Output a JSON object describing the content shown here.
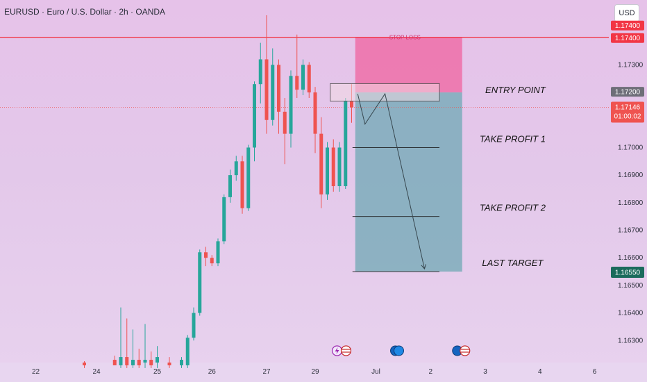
{
  "header": {
    "symbol_title": "EURUSD · Euro / U.S. Dollar · 2h · OANDA",
    "currency_button": "USD"
  },
  "colors": {
    "bull": "#26a69a",
    "bear": "#ef5350",
    "stop_zone": "#ef6fa8",
    "profit_zone": "#6fa8b4",
    "resistance_line": "#f23645",
    "current_price_line": "#ef5350",
    "last_target_tag": "#1b6b5c",
    "entry_tag": "#6e6e78"
  },
  "chart_data": {
    "type": "candlestick",
    "ylim": [
      1.1622,
      1.17495
    ],
    "y_ticks": [
      "1.17300",
      "1.17000",
      "1.16900",
      "1.16800",
      "1.16700",
      "1.16600",
      "1.16500",
      "1.16400",
      "1.16300"
    ],
    "x_ticks": [
      {
        "label": "22",
        "i": -26
      },
      {
        "label": "24",
        "i": -16
      },
      {
        "label": "25",
        "i": -6
      },
      {
        "label": "26",
        "i": 3
      },
      {
        "label": "27",
        "i": 12
      },
      {
        "label": "29",
        "i": 20
      },
      {
        "label": "Jul",
        "i": 30
      },
      {
        "label": "2",
        "i": 39
      },
      {
        "label": "3",
        "i": 48
      },
      {
        "label": "4",
        "i": 57
      },
      {
        "label": "6",
        "i": 66
      }
    ],
    "candles": [
      {
        "i": -18,
        "o": 1.1622,
        "h": 1.16225,
        "l": 1.162,
        "c": 1.1621
      },
      {
        "i": -13,
        "o": 1.1623,
        "h": 1.16245,
        "l": 1.1621,
        "c": 1.1621
      },
      {
        "i": -12,
        "o": 1.1621,
        "h": 1.1642,
        "l": 1.162,
        "c": 1.1624
      },
      {
        "i": -11,
        "o": 1.1624,
        "h": 1.1638,
        "l": 1.162,
        "c": 1.1621
      },
      {
        "i": -10,
        "o": 1.1621,
        "h": 1.1634,
        "l": 1.162,
        "c": 1.1623
      },
      {
        "i": -9,
        "o": 1.1623,
        "h": 1.1627,
        "l": 1.162,
        "c": 1.1621
      },
      {
        "i": -8,
        "o": 1.1622,
        "h": 1.1636,
        "l": 1.162,
        "c": 1.1623
      },
      {
        "i": -7,
        "o": 1.1623,
        "h": 1.1626,
        "l": 1.162,
        "c": 1.1621
      },
      {
        "i": -6,
        "o": 1.1622,
        "h": 1.1628,
        "l": 1.162,
        "c": 1.1624
      },
      {
        "i": -4,
        "o": 1.1622,
        "h": 1.1624,
        "l": 1.162,
        "c": 1.1621
      },
      {
        "i": -2,
        "o": 1.1621,
        "h": 1.1624,
        "l": 1.162,
        "c": 1.1623
      },
      {
        "i": -1,
        "o": 1.1621,
        "h": 1.1632,
        "l": 1.162,
        "c": 1.1631
      },
      {
        "i": 0,
        "o": 1.1631,
        "h": 1.1642,
        "l": 1.163,
        "c": 1.164
      },
      {
        "i": 1,
        "o": 1.164,
        "h": 1.1663,
        "l": 1.1639,
        "c": 1.1662
      },
      {
        "i": 2,
        "o": 1.1662,
        "h": 1.1664,
        "l": 1.1657,
        "c": 1.166
      },
      {
        "i": 3,
        "o": 1.166,
        "h": 1.1661,
        "l": 1.1657,
        "c": 1.1658
      },
      {
        "i": 4,
        "o": 1.1658,
        "h": 1.1667,
        "l": 1.1657,
        "c": 1.1666
      },
      {
        "i": 5,
        "o": 1.1666,
        "h": 1.1683,
        "l": 1.1665,
        "c": 1.1682
      },
      {
        "i": 6,
        "o": 1.1682,
        "h": 1.1692,
        "l": 1.168,
        "c": 1.169
      },
      {
        "i": 7,
        "o": 1.169,
        "h": 1.1697,
        "l": 1.1688,
        "c": 1.1695
      },
      {
        "i": 8,
        "o": 1.1695,
        "h": 1.1697,
        "l": 1.1676,
        "c": 1.1678
      },
      {
        "i": 9,
        "o": 1.1678,
        "h": 1.1701,
        "l": 1.1677,
        "c": 1.17
      },
      {
        "i": 10,
        "o": 1.17,
        "h": 1.1724,
        "l": 1.1695,
        "c": 1.1723
      },
      {
        "i": 11,
        "o": 1.1723,
        "h": 1.1738,
        "l": 1.1716,
        "c": 1.1732
      },
      {
        "i": 12,
        "o": 1.1732,
        "h": 1.1748,
        "l": 1.1705,
        "c": 1.171
      },
      {
        "i": 13,
        "o": 1.171,
        "h": 1.1736,
        "l": 1.1708,
        "c": 1.173
      },
      {
        "i": 14,
        "o": 1.173,
        "h": 1.1732,
        "l": 1.1705,
        "c": 1.1713
      },
      {
        "i": 15,
        "o": 1.1713,
        "h": 1.1718,
        "l": 1.1694,
        "c": 1.1705
      },
      {
        "i": 16,
        "o": 1.1705,
        "h": 1.1728,
        "l": 1.17,
        "c": 1.1726
      },
      {
        "i": 17,
        "o": 1.1726,
        "h": 1.1741,
        "l": 1.1718,
        "c": 1.1721
      },
      {
        "i": 18,
        "o": 1.1721,
        "h": 1.1732,
        "l": 1.1719,
        "c": 1.173
      },
      {
        "i": 19,
        "o": 1.173,
        "h": 1.1731,
        "l": 1.1718,
        "c": 1.172
      },
      {
        "i": 20,
        "o": 1.172,
        "h": 1.1722,
        "l": 1.1698,
        "c": 1.1705
      },
      {
        "i": 21,
        "o": 1.1705,
        "h": 1.1711,
        "l": 1.1678,
        "c": 1.1683
      },
      {
        "i": 22,
        "o": 1.1683,
        "h": 1.1702,
        "l": 1.1681,
        "c": 1.17
      },
      {
        "i": 23,
        "o": 1.17,
        "h": 1.1703,
        "l": 1.1684,
        "c": 1.1686
      },
      {
        "i": 24,
        "o": 1.1686,
        "h": 1.1702,
        "l": 1.1684,
        "c": 1.17
      },
      {
        "i": 25,
        "o": 1.1686,
        "h": 1.1718,
        "l": 1.1685,
        "c": 1.1717
      },
      {
        "i": 26,
        "o": 1.1717,
        "h": 1.1723,
        "l": 1.1709,
        "c": 1.17146
      }
    ],
    "resistance": 1.174,
    "current_price": 1.17146,
    "levels": {
      "stop_loss": 1.174,
      "entry": 1.172,
      "take_profit_1": 1.17,
      "take_profit_2": 1.1675,
      "last_target": 1.1655
    },
    "projection": [
      {
        "i": 27,
        "p": 1.17195
      },
      {
        "i": 28.2,
        "p": 1.17085
      },
      {
        "i": 31.5,
        "p": 1.17195
      },
      {
        "i": 38,
        "p": 1.1656
      }
    ],
    "position_i_range": [
      26.6,
      44.2
    ],
    "label_i": 52.5,
    "event_icons": [
      {
        "i": 23.6,
        "kind": "flash-flag"
      },
      {
        "i": 33.2,
        "kind": "globe"
      },
      {
        "i": 43.4,
        "kind": "globe-flag"
      }
    ]
  },
  "annotations": {
    "stop_loss": "STOP LOSS",
    "entry": "ENTRY POINT",
    "tp1": "TAKE PROFIT 1",
    "tp2": "TAKE PROFIT 2",
    "last_target": "LAST TARGET"
  },
  "price_tags": {
    "resistance_top": "1.17400",
    "resistance": "1.17400",
    "entry": "1.17200",
    "current": "1.17146",
    "countdown": "01:00:02",
    "last_target": "1.16550"
  }
}
